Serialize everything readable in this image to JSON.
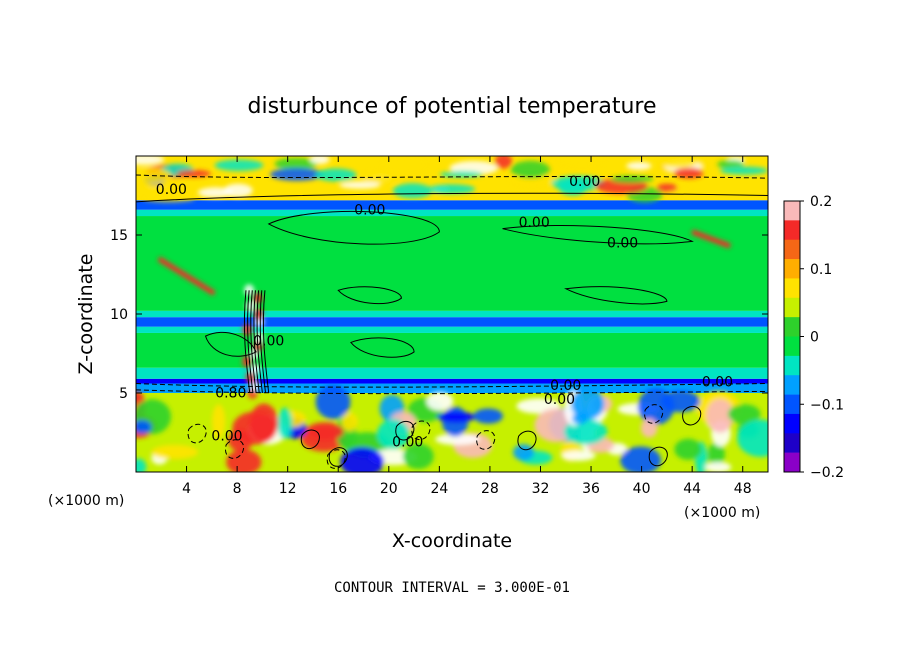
{
  "chart_data": {
    "type": "heatmap",
    "title": "disturbunce of potential temperature",
    "xlabel": "X-coordinate",
    "ylabel": "Z-coordinate",
    "x_unit": "(×1000 m)",
    "y_unit": "(×1000 m)",
    "footer": "CONTOUR INTERVAL = 3.000E-01",
    "xlim": [
      0,
      50
    ],
    "ylim": [
      0,
      20
    ],
    "x_ticks": [
      4,
      8,
      12,
      16,
      20,
      24,
      28,
      32,
      36,
      40,
      44,
      48
    ],
    "x_tick_labels": [
      "4",
      "8",
      "12",
      "16",
      "20",
      "24",
      "28",
      "32",
      "36",
      "40",
      "44",
      "48"
    ],
    "y_ticks": [
      5,
      10,
      15
    ],
    "y_tick_labels": [
      "5",
      "10",
      "15"
    ],
    "colorbar": {
      "range": [
        -0.2,
        0.2
      ],
      "ticks": [
        0.2,
        0.1,
        0,
        -0.1,
        -0.2
      ],
      "tick_labels": [
        "0.2",
        "0.1",
        "0",
        "−0.1",
        "−0.2"
      ],
      "colors": [
        "#f9b9b9",
        "#f42a28",
        "#f56716",
        "#ffae00",
        "#ffe300",
        "#c6f000",
        "#2ed12b",
        "#00e040",
        "#00e5c2",
        "#00a0ff",
        "#0055ff",
        "#0000ff",
        "#1e00c8",
        "#8a00c8"
      ]
    },
    "bands": [
      {
        "z0": 0,
        "z1": 5.0,
        "value": 0.05
      },
      {
        "z0": 5.0,
        "z1": 5.6,
        "value": -0.08
      },
      {
        "z0": 5.6,
        "z1": 5.9,
        "value": -0.12
      },
      {
        "z0": 5.9,
        "z1": 6.6,
        "value": -0.03
      },
      {
        "z0": 6.6,
        "z1": 8.8,
        "value": 0.0
      },
      {
        "z0": 8.8,
        "z1": 9.2,
        "value": -0.05
      },
      {
        "z0": 9.2,
        "z1": 9.8,
        "value": -0.11
      },
      {
        "z0": 9.8,
        "z1": 10.2,
        "value": -0.05
      },
      {
        "z0": 10.2,
        "z1": 16.2,
        "value": 0.0
      },
      {
        "z0": 16.2,
        "z1": 16.6,
        "value": -0.05
      },
      {
        "z0": 16.6,
        "z1": 17.2,
        "value": -0.1
      },
      {
        "z0": 17.2,
        "z1": 20,
        "value": 0.08
      }
    ],
    "contour_labels": [
      {
        "x": 2.8,
        "z": 17.6,
        "text": "0.00"
      },
      {
        "x": 18.5,
        "z": 16.3,
        "text": "0.00"
      },
      {
        "x": 31.5,
        "z": 15.5,
        "text": "0.00"
      },
      {
        "x": 38.5,
        "z": 14.2,
        "text": "0.00"
      },
      {
        "x": 35.5,
        "z": 18.1,
        "text": "0.00"
      },
      {
        "x": 46,
        "z": 5.4,
        "text": "0.00"
      },
      {
        "x": 34,
        "z": 5.2,
        "text": "0.00"
      },
      {
        "x": 33.5,
        "z": 4.3,
        "text": "0.00"
      },
      {
        "x": 7.5,
        "z": 4.7,
        "text": "0.80"
      },
      {
        "x": 10.5,
        "z": 8.0,
        "text": "0.00"
      },
      {
        "x": 21.5,
        "z": 1.6,
        "text": "0.00"
      },
      {
        "x": 7.2,
        "z": 2.0,
        "text": "0.00"
      }
    ]
  }
}
